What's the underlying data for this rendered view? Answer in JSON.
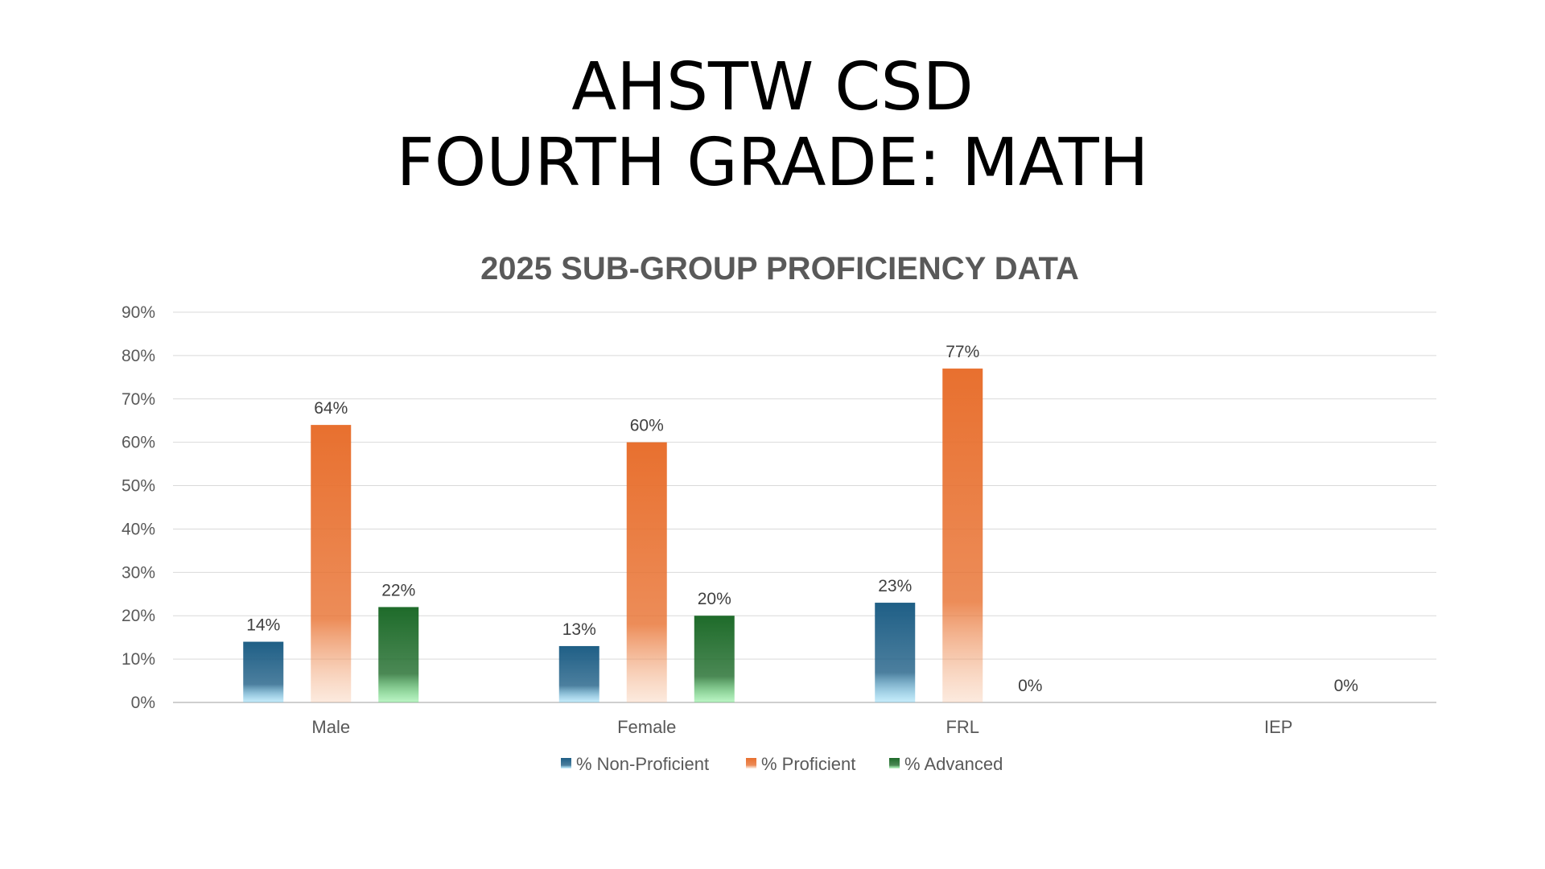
{
  "slide": {
    "title_line1": "AHSTW CSD",
    "title_line2": "FOURTH GRADE: MATH"
  },
  "chart_data": {
    "type": "bar",
    "title": "2025 SUB-GROUP PROFICIENCY DATA",
    "categories": [
      "Male",
      "Female",
      "FRL",
      "IEP"
    ],
    "series": [
      {
        "name": "% Non-Proficient",
        "values": [
          14,
          13,
          23,
          null
        ],
        "color": "#1f5f86",
        "color_light": "#5ec8f2",
        "labels": [
          "14%",
          "13%",
          "23%",
          ""
        ]
      },
      {
        "name": "% Proficient",
        "values": [
          64,
          60,
          77,
          null
        ],
        "color": "#e8702f",
        "color_light": "#f6c2a0",
        "labels": [
          "64%",
          "60%",
          "77%",
          ""
        ]
      },
      {
        "name": "% Advanced",
        "values": [
          22,
          20,
          0,
          0
        ],
        "color": "#1e6b2a",
        "color_light": "#3fe05a",
        "labels": [
          "22%",
          "20%",
          "0%",
          "0%"
        ]
      }
    ],
    "ylim": [
      0,
      90
    ],
    "yticks": [
      "0%",
      "10%",
      "20%",
      "30%",
      "40%",
      "50%",
      "60%",
      "70%",
      "80%",
      "90%"
    ],
    "ytick_values": [
      0,
      10,
      20,
      30,
      40,
      50,
      60,
      70,
      80,
      90
    ],
    "grid": true,
    "legend_position": "bottom"
  }
}
